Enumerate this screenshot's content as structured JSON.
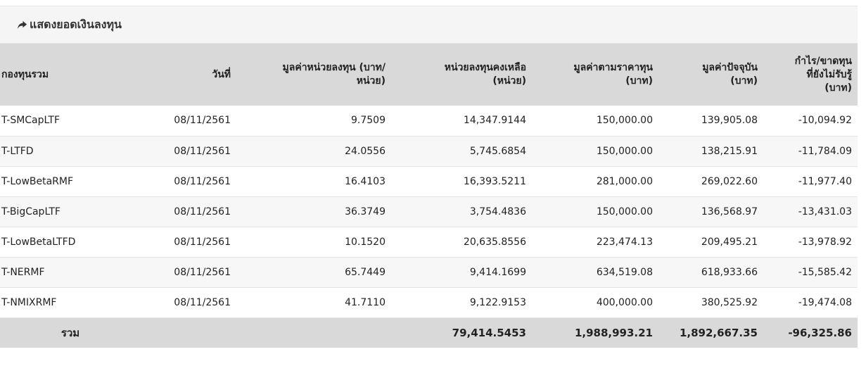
{
  "panel": {
    "title": "แสดงยอดเงินลงทุน",
    "title_icon": "share-arrow-icon"
  },
  "table": {
    "headers": [
      "กองทุนรวม",
      "วันที่",
      "มูลค่าหน่วยลงทุน (บาท/\nหน่วย)",
      "หน่วยลงทุนคงเหลือ\n(หน่วย)",
      "มูลค่าตามราคาทุน\n(บาท)",
      "มูลค่าปัจจุบัน\n(บาท)",
      "กำไร/ขาดทุน\nที่ยังไม่รับรู้\n(บาท)"
    ],
    "rows": [
      [
        "T-SMCapLTF",
        "08/11/2561",
        "9.7509",
        "14,347.9144",
        "150,000.00",
        "139,905.08",
        "-10,094.92"
      ],
      [
        "T-LTFD",
        "08/11/2561",
        "24.0556",
        "5,745.6854",
        "150,000.00",
        "138,215.91",
        "-11,784.09"
      ],
      [
        "T-LowBetaRMF",
        "08/11/2561",
        "16.4103",
        "16,393.5211",
        "281,000.00",
        "269,022.60",
        "-11,977.40"
      ],
      [
        "T-BigCapLTF",
        "08/11/2561",
        "36.3749",
        "3,754.4836",
        "150,000.00",
        "136,568.97",
        "-13,431.03"
      ],
      [
        "T-LowBetaLTFD",
        "08/11/2561",
        "10.1520",
        "20,635.8556",
        "223,474.13",
        "209,495.21",
        "-13,978.92"
      ],
      [
        "T-NERMF",
        "08/11/2561",
        "65.7449",
        "9,414.1699",
        "634,519.08",
        "618,933.66",
        "-15,585.42"
      ],
      [
        "T-NMIXRMF",
        "08/11/2561",
        "41.7110",
        "9,122.9153",
        "400,000.00",
        "380,525.92",
        "-19,474.08"
      ]
    ],
    "totals": {
      "label": "รวม",
      "units": "79,414.5453",
      "cost": "1,988,993.21",
      "current": "1,892,667.35",
      "unrealized": "-96,325.86"
    }
  }
}
